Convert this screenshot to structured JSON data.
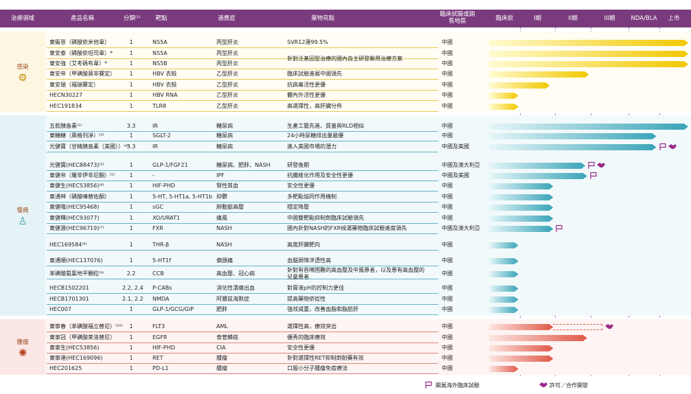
{
  "header": {
    "area": "治療領域",
    "name": "產品名稱",
    "class": "分類⁽¹⁾",
    "target": "靶點",
    "indication": "適應症",
    "highlight": "藥物亮點",
    "region": "臨床試驗或銷售地區",
    "stages": [
      "臨床前",
      "I期",
      "II期",
      "III期",
      "NDA/BLA",
      "上市"
    ]
  },
  "areas": [
    {
      "name": "感染",
      "rows": [
        {
          "name": "東衛恩（磷酸依米他韋）",
          "class": "1",
          "target": "NS5A",
          "indication": "丙型肝炎",
          "highlight": "SVR12達99.5%",
          "region": "中國",
          "progress": 6
        },
        {
          "name": "東安泰（磷酸依坦司韋）*",
          "class": "1",
          "target": "NS5A",
          "indication": "丙型肝炎",
          "highlight": "針對泛基因型治療的國內自主研發聯用治療方案",
          "region": "中國",
          "progress": 6
        },
        {
          "name": "東安強（艾考碼布韋）*",
          "class": "1",
          "target": "NS5B",
          "indication": "丙型肝炎",
          "region": "中國",
          "progress": 6
        },
        {
          "name": "東安帝（甲磺酸莫非賽定）",
          "class": "1",
          "target": "HBV 衣殼",
          "indication": "乙型肝炎",
          "highlight": "臨床試驗進展中國領先",
          "region": "中國",
          "progress": 2.95
        },
        {
          "name": "東安瑞（福瑞賽定）",
          "class": "1",
          "target": "HBV 衣殼",
          "indication": "乙型肝炎",
          "highlight": "抗病毒活性更優",
          "region": "中國",
          "progress": 1.85
        },
        {
          "name": "HECN30227",
          "class": "1",
          "target": "HBV RNA",
          "indication": "乙型肝炎",
          "highlight": "體內外活性更優",
          "region": "中國",
          "progress": 0.95
        },
        {
          "name": "HEC191834",
          "class": "1",
          "target": "TLR8",
          "indication": "乙型肝炎",
          "highlight": "高選擇性，高肝臟分佈",
          "region": "中國",
          "progress": 0.95
        }
      ]
    },
    {
      "name": "慢病",
      "rows": [
        {
          "name": "五款胰島素⁽²⁾",
          "class": "3.3",
          "target": "IR",
          "indication": "糖尿病",
          "highlight": "生產工藝先進、質量與RLD相似",
          "region": "中國",
          "progress": 6
        },
        {
          "name": "東糖糖（奧格列淨）⁽³⁾",
          "class": "1",
          "target": "SGLT-2",
          "indication": "糖尿病",
          "highlight": "24小時尿糖排出量最優",
          "region": "中國",
          "progress": 4.9
        },
        {
          "name": "光健寶（甘精胰島素（美國））⁽⁴⁾",
          "class": "3.3",
          "target": "IR",
          "indication": "糖尿病",
          "highlight": "進入美國市場的潛力",
          "region": "中國及美國",
          "progress": 4.9,
          "overseas": true,
          "license": true
        },
        {
          "name": "光健寶(HEC88473)⁽⁵⁾",
          "class": "1",
          "target": "GLP-1/FGF21",
          "indication": "糖尿病、肥胖、NASH",
          "highlight": "研發後期",
          "region": "中國及澳大利亞",
          "progress": 2.85,
          "overseas": true,
          "license": true
        },
        {
          "name": "東健帝（羅非伊非尼酮）⁽⁵⁾",
          "class": "1",
          "target": "-",
          "indication": "IPF",
          "highlight": "抗纖維化作用及安全性更優",
          "region": "中國及美國",
          "progress": 2.9,
          "overseas": true
        },
        {
          "name": "東健生(HEC53856)⁽⁶⁾",
          "class": "1",
          "target": "HIF-PHD",
          "indication": "腎性貧血",
          "highlight": "安全性更優",
          "region": "中國",
          "progress": 1.95
        },
        {
          "name": "東通神（磷酸嗪替佐酮）",
          "class": "1",
          "target": "5-HT, 5-HT1a, 5-HT1b",
          "indication": "抑鬱",
          "highlight": "多靶點協同作用機制",
          "region": "中國",
          "progress": 1.95
        },
        {
          "name": "東健隆(HEC95468)",
          "class": "1",
          "target": "sGC",
          "indication": "肺動脈高壓",
          "highlight": "穩定降壓",
          "region": "中國",
          "progress": 1.95
        },
        {
          "name": "東健釋(HEC93077)",
          "class": "1",
          "target": "XO/URAT1",
          "indication": "痛風",
          "highlight": "中國雙靶點抑制劑臨床試驗領先",
          "region": "中國",
          "progress": 1.95
        },
        {
          "name": "東健源(HEC96719)⁽⁷⁾",
          "class": "1",
          "target": "FXR",
          "indication": "NASH",
          "highlight": "國內針對NASH的FXR候選藥物臨床試驗進度領先",
          "region": "中國及澳大利亞",
          "progress": 1.95,
          "overseas": true
        },
        {
          "name": "HEC169584⁽⁸⁾",
          "class": "1",
          "target": "THR-β",
          "indication": "NASH",
          "highlight": "高度肝臟靶向",
          "region": "中國",
          "progress": 0.95
        },
        {
          "name": "東通順(HEC137076)",
          "class": "1",
          "target": "5-HT1f",
          "indication": "偏頭痛",
          "highlight": "血腦屏障滲透性高",
          "region": "中國",
          "progress": 0.95
        },
        {
          "name": "苯磺酸氨氯地平顆粒⁽⁹⁾",
          "class": "2.2",
          "target": "CCB",
          "indication": "高血壓、冠心病",
          "highlight": "針對有吞嚥困難的高血壓及中風患者，以及患有高血壓的兒童患者",
          "region": "中國",
          "progress": 0.95
        },
        {
          "name": "HECB1502201",
          "class": "2.2, 2.4",
          "target": "P-CABs",
          "indication": "消化性潰瘍出血",
          "highlight": "對胃液pH的控制力更佳",
          "region": "中國",
          "progress": 0.95
        },
        {
          "name": "HECB1701301",
          "class": "2.1, 2.2",
          "target": "NMDA",
          "indication": "阿爾茲海默症",
          "highlight": "提高藥物依從性",
          "region": "中國",
          "progress": 0.95
        },
        {
          "name": "HEC007",
          "class": "1",
          "target": "GLP-1/GCG/GIP",
          "indication": "肥胖",
          "highlight": "強效減重，改善血脂和脂肪肝",
          "region": "中國",
          "progress": 0.95
        }
      ]
    },
    {
      "name": "腫瘤",
      "rows": [
        {
          "name": "東寧春（苯磺酸福立替尼）⁽¹⁰⁾",
          "class": "1",
          "target": "FLT3",
          "indication": "AML",
          "highlight": "選擇性高，療效突出",
          "region": "中國",
          "progress": 1.95,
          "dashed_to": 3.3,
          "license": true
        },
        {
          "name": "東寧冠（甲磺酸莱洛替尼）",
          "class": "1",
          "target": "EGFR",
          "indication": "食管鱗癌",
          "highlight": "優秀的臨床療效",
          "region": "中國",
          "progress": 2.9
        },
        {
          "name": "東寧生(HEC53856)",
          "class": "1",
          "target": "HIF-PHD",
          "indication": "CIA",
          "highlight": "安全性更優",
          "region": "中國",
          "progress": 1.95
        },
        {
          "name": "東寧達(HEC169096)",
          "class": "1",
          "target": "RET",
          "indication": "腫瘤",
          "highlight": "針對選擇性RET抑制劑耐藥有效",
          "region": "中國",
          "progress": 1.95
        },
        {
          "name": "HEC201625",
          "class": "1",
          "target": "PD-L1",
          "indication": "腫瘤",
          "highlight": "口服小分子腫瘤免疫療法",
          "region": "中國",
          "progress": 0.95
        }
      ]
    }
  ],
  "legend": {
    "overseas": "開展海外臨床試驗",
    "license": "許可／合作開發"
  }
}
